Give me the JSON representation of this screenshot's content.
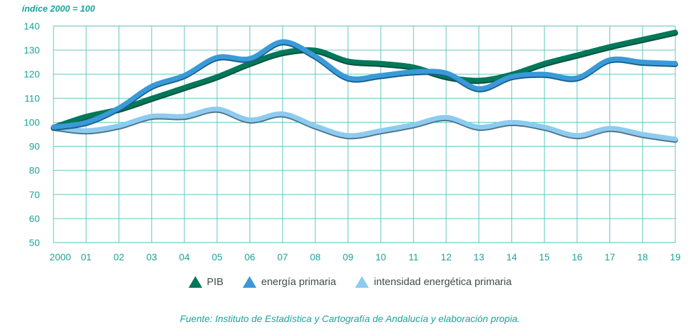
{
  "chart_data": {
    "type": "line",
    "unit_label": "índice 2000 = 100",
    "x": [
      "2000",
      "01",
      "02",
      "03",
      "04",
      "05",
      "06",
      "07",
      "08",
      "09",
      "10",
      "11",
      "12",
      "13",
      "14",
      "15",
      "16",
      "17",
      "18",
      "19"
    ],
    "ylim": [
      50,
      140
    ],
    "yticks": [
      50,
      60,
      70,
      80,
      90,
      100,
      110,
      120,
      130,
      140
    ],
    "grid": true,
    "series": [
      {
        "name": "PIB",
        "color": "#00785a",
        "values": [
          98,
          102.5,
          105.5,
          110,
          114.5,
          119,
          124.5,
          129,
          130,
          125.5,
          124.5,
          123,
          119,
          117.5,
          120,
          124.5,
          128,
          131.5,
          134.5,
          137.5
        ]
      },
      {
        "name": "energía primaria",
        "color": "#3a9ad9",
        "values": [
          98,
          100,
          106,
          115,
          119.5,
          127,
          126.5,
          133.5,
          127.5,
          118.5,
          119.5,
          121,
          120.5,
          114,
          119,
          120,
          118.5,
          126,
          125,
          124.5
        ]
      },
      {
        "name": "intensidad energética primaria",
        "color": "#8ecbf0",
        "values": [
          98,
          96.5,
          98.5,
          102.5,
          102.5,
          105.5,
          101,
          103.5,
          98.5,
          94.5,
          96.5,
          99,
          102,
          98,
          100,
          98,
          94.5,
          97.5,
          95,
          93
        ]
      }
    ],
    "source": "Fuente: Instituto de Estadística y Cartografía de Andalucía y elaboración propia."
  }
}
